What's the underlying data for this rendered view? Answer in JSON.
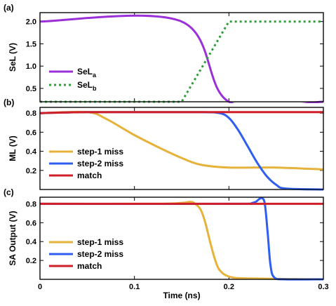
{
  "colors": {
    "purple": "#9b30d9",
    "green": "#2e9d3a",
    "orange": "#e6b23a",
    "blue": "#2f5ef0",
    "red": "#d11f2a"
  },
  "chart_data": [
    {
      "type": "line",
      "panel_label": "(a)",
      "ylabel": "SeL (V)",
      "xlim": [
        0,
        0.3
      ],
      "ylim": [
        0.2,
        2.2
      ],
      "yticks": [
        0.5,
        1.0,
        1.5,
        2.0
      ],
      "ytick_labels": [
        "0.5",
        "1.0",
        "1.5",
        "2.0"
      ],
      "legend_placement": "bottom-left",
      "series": [
        {
          "name": "SeL",
          "subscript": "a",
          "color": "#9b30d9",
          "style": "solid",
          "x": [
            0,
            0.15,
            0.2,
            0.3
          ],
          "y": [
            2.0,
            2.0,
            0.2,
            0.2
          ]
        },
        {
          "name": "SeL",
          "subscript": "b",
          "color": "#2e9d3a",
          "style": "dotted",
          "x": [
            0,
            0.15,
            0.2,
            0.3
          ],
          "y": [
            0.2,
            0.2,
            2.0,
            2.0
          ]
        }
      ]
    },
    {
      "type": "line",
      "panel_label": "(b)",
      "ylabel": "ML (V)",
      "xlim": [
        0,
        0.3
      ],
      "ylim": [
        0.0,
        0.86
      ],
      "yticks": [
        0.2,
        0.4,
        0.6,
        0.8
      ],
      "ytick_labels": [
        "0.2",
        "0.4",
        "0.6",
        "0.8"
      ],
      "legend_placement": "bottom-left",
      "series": [
        {
          "name": "step-1 miss",
          "color": "#e6b23a",
          "style": "solid",
          "x": [
            0,
            0.05,
            0.07,
            0.1,
            0.13,
            0.15,
            0.17,
            0.2,
            0.25,
            0.3
          ],
          "y": [
            0.8,
            0.81,
            0.74,
            0.57,
            0.42,
            0.33,
            0.26,
            0.23,
            0.23,
            0.21
          ]
        },
        {
          "name": "step-2 miss",
          "color": "#2f5ef0",
          "style": "solid",
          "x": [
            0,
            0.05,
            0.1,
            0.17,
            0.19,
            0.2,
            0.21,
            0.22,
            0.23,
            0.24,
            0.25,
            0.26,
            0.3
          ],
          "y": [
            0.8,
            0.81,
            0.81,
            0.81,
            0.8,
            0.75,
            0.62,
            0.45,
            0.28,
            0.14,
            0.05,
            0.01,
            0.0
          ]
        },
        {
          "name": "match",
          "color": "#d11f2a",
          "style": "solid",
          "x": [
            0,
            0.05,
            0.1,
            0.2,
            0.3
          ],
          "y": [
            0.8,
            0.81,
            0.81,
            0.81,
            0.81
          ]
        }
      ]
    },
    {
      "type": "line",
      "panel_label": "(c)",
      "ylabel": "SA Output (V)",
      "xlabel": "Time (ns)",
      "xlim": [
        0,
        0.3
      ],
      "ylim": [
        0.0,
        0.87
      ],
      "yticks": [
        0.2,
        0.4,
        0.6,
        0.8
      ],
      "ytick_labels": [
        "0.2",
        "0.4",
        "0.6",
        "0.8"
      ],
      "xticks": [
        0,
        0.1,
        0.2,
        0.3
      ],
      "xtick_labels": [
        "0",
        "0.1",
        "0.2",
        "0.3"
      ],
      "legend_placement": "bottom-left",
      "series": [
        {
          "name": "step-1 miss",
          "color": "#e6b23a",
          "style": "solid",
          "x": [
            0,
            0.12,
            0.15,
            0.158,
            0.163,
            0.17,
            0.175,
            0.18,
            0.185,
            0.19,
            0.2,
            0.22,
            0.3
          ],
          "y": [
            0.8,
            0.8,
            0.81,
            0.82,
            0.81,
            0.74,
            0.6,
            0.4,
            0.22,
            0.1,
            0.03,
            0.01,
            0.0
          ]
        },
        {
          "name": "step-2 miss",
          "color": "#2f5ef0",
          "style": "solid",
          "x": [
            0,
            0.2,
            0.225,
            0.232,
            0.235,
            0.238,
            0.241,
            0.244,
            0.248,
            0.26,
            0.3
          ],
          "y": [
            0.8,
            0.8,
            0.81,
            0.85,
            0.86,
            0.8,
            0.5,
            0.15,
            0.02,
            0.0,
            0.0
          ]
        },
        {
          "name": "match",
          "color": "#d11f2a",
          "style": "solid",
          "x": [
            0,
            0.3
          ],
          "y": [
            0.8,
            0.8
          ]
        }
      ]
    }
  ]
}
